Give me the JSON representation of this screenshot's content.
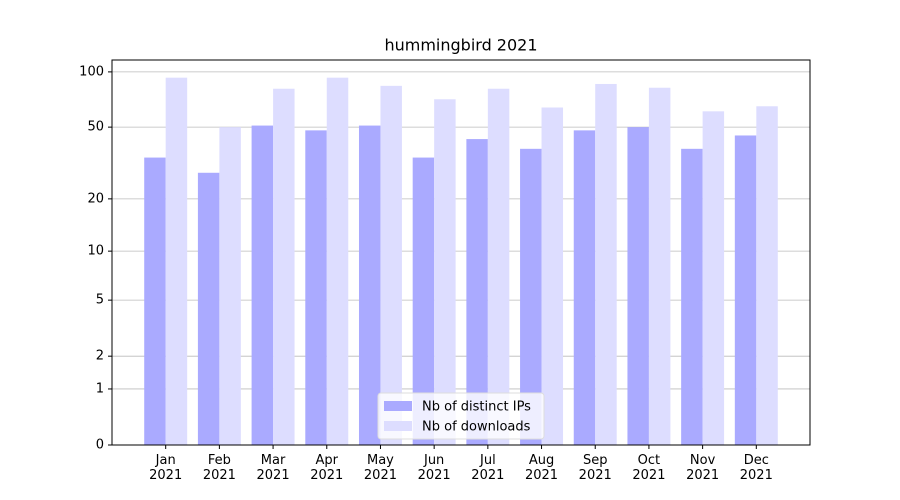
{
  "chart_data": {
    "type": "bar",
    "title": "hummingbird 2021",
    "categories": [
      "Jan\n2021",
      "Feb\n2021",
      "Mar\n2021",
      "Apr\n2021",
      "May\n2021",
      "Jun\n2021",
      "Jul\n2021",
      "Aug\n2021",
      "Sep\n2021",
      "Oct\n2021",
      "Nov\n2021",
      "Dec\n2021"
    ],
    "series": [
      {
        "name": "Nb of distinct IPs",
        "color": "#aaaaff",
        "values": [
          34,
          28,
          51,
          48,
          51,
          34,
          43,
          38,
          48,
          50,
          38,
          45
        ]
      },
      {
        "name": "Nb of downloads",
        "color": "#ddddff",
        "values": [
          93,
          50,
          81,
          93,
          84,
          71,
          81,
          64,
          86,
          82,
          61,
          65
        ]
      }
    ],
    "yscale": "log1p",
    "ylim": [
      0,
      116
    ],
    "yticks": [
      0,
      1,
      2,
      5,
      10,
      20,
      50,
      100
    ],
    "grid": true,
    "legend": "lower center"
  }
}
